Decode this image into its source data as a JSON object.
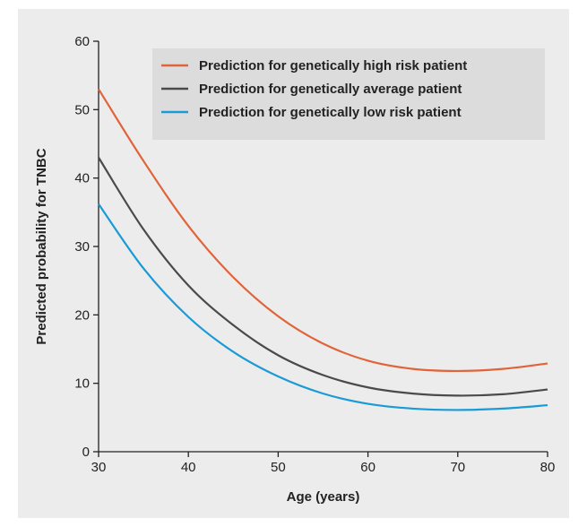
{
  "chart_data": {
    "type": "line",
    "xlabel": "Age (years)",
    "ylabel": "Predicted probability for TNBC",
    "xlim": [
      30,
      80
    ],
    "ylim": [
      0,
      60
    ],
    "xticks": [
      30,
      40,
      50,
      60,
      70,
      80
    ],
    "yticks": [
      0,
      10,
      20,
      30,
      40,
      50,
      60
    ],
    "grid": false,
    "legend_position": "top-right",
    "x": [
      30,
      35,
      40,
      45,
      50,
      55,
      60,
      65,
      70,
      75,
      80
    ],
    "series": [
      {
        "name": "Prediction for genetically high risk patient",
        "color": "#e0643a",
        "values": [
          53,
          42.5,
          33,
          25.5,
          19.8,
          15.8,
          13.3,
          12.1,
          11.8,
          12.1,
          12.9
        ]
      },
      {
        "name": "Prediction for genetically average patient",
        "color": "#4a4a4a",
        "values": [
          43,
          32.5,
          24.3,
          18.5,
          14.1,
          11.2,
          9.4,
          8.5,
          8.2,
          8.4,
          9.1
        ]
      },
      {
        "name": "Prediction for genetically low risk patient",
        "color": "#1a9ad6",
        "values": [
          36.2,
          26.8,
          19.7,
          14.6,
          11.0,
          8.5,
          7.0,
          6.3,
          6.1,
          6.3,
          6.8
        ]
      }
    ]
  }
}
